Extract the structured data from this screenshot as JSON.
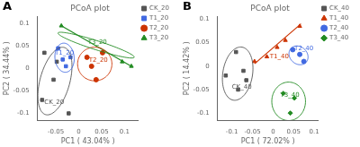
{
  "chart_data": [
    {
      "type": "scatter",
      "panel_label": "A",
      "title": "PCoA plot",
      "x_label": "PC1 ( 43.04% )",
      "y_label": "PC2 ( 34.44% )",
      "xlim": [
        -0.09,
        0.13
      ],
      "ylim": [
        -0.115,
        0.115
      ],
      "xticks": [
        -0.05,
        0,
        0.05,
        0.1
      ],
      "yticks": [
        -0.1,
        -0.05,
        0,
        0.05,
        0.1
      ],
      "grid": false,
      "legend": "right",
      "series": [
        {
          "name": "CK_20",
          "color": "#555555",
          "marker": "square",
          "values": [
            [
              -0.075,
              0.035
            ],
            [
              -0.048,
              0.015
            ],
            [
              -0.055,
              -0.025
            ],
            [
              -0.08,
              -0.07
            ],
            [
              -0.022,
              -0.1
            ]
          ],
          "ellipse": {
            "cx": -0.052,
            "cy": -0.028,
            "w": 0.065,
            "h": 0.155,
            "angle": -15
          },
          "annotation": {
            "text": "CK_20",
            "x": -0.075,
            "y": -0.075
          }
        },
        {
          "name": "T1_20",
          "color": "#4169E1",
          "marker": "square",
          "values": [
            [
              -0.045,
              0.045
            ],
            [
              -0.035,
              0.02
            ],
            [
              -0.028,
              0.005
            ],
            [
              -0.018,
              0.025
            ]
          ],
          "ellipse": {
            "cx": -0.031,
            "cy": 0.024,
            "w": 0.042,
            "h": 0.065,
            "angle": 5
          },
          "annotation": {
            "text": "T1_20",
            "x": -0.052,
            "y": 0.035
          }
        },
        {
          "name": "T2_20",
          "color": "#CC3300",
          "marker": "circle",
          "values": [
            [
              0.018,
              0.025
            ],
            [
              0.052,
              0.035
            ],
            [
              0.038,
              -0.025
            ],
            [
              0.028,
              0.005
            ]
          ],
          "ellipse": {
            "cx": 0.035,
            "cy": 0.01,
            "w": 0.075,
            "h": 0.075,
            "angle": 25
          },
          "annotation": {
            "text": "T2_20",
            "x": 0.022,
            "y": 0.018
          }
        },
        {
          "name": "T3_20",
          "color": "#228B22",
          "marker": "triangle",
          "values": [
            [
              -0.038,
              0.095
            ],
            [
              0.095,
              0.015
            ],
            [
              0.115,
              0.005
            ]
          ],
          "ellipse": {
            "cx": 0.038,
            "cy": 0.052,
            "w": 0.175,
            "h": 0.02,
            "angle": -18
          },
          "line": [
            [
              -0.038,
              0.095
            ],
            [
              0.115,
              0.005
            ]
          ],
          "annotation": {
            "text": "T3_20",
            "x": 0.02,
            "y": 0.058
          }
        }
      ]
    },
    {
      "type": "scatter",
      "panel_label": "B",
      "title": "PCoA plot",
      "x_label": "PC1 ( 72.02% )",
      "y_label": "PC2 ( 14.42% )",
      "xlim": [
        -0.135,
        0.11
      ],
      "ylim": [
        -0.115,
        0.105
      ],
      "xticks": [
        -0.1,
        -0.05,
        0,
        0.05,
        0.1
      ],
      "yticks": [
        -0.1,
        -0.05,
        0,
        0.05,
        0.1
      ],
      "grid": false,
      "legend": "right",
      "series": [
        {
          "name": "CK_40",
          "color": "#555555",
          "marker": "square",
          "values": [
            [
              -0.115,
              -0.02
            ],
            [
              -0.09,
              0.03
            ],
            [
              -0.072,
              -0.01
            ],
            [
              -0.065,
              -0.03
            ],
            [
              -0.085,
              -0.05
            ]
          ],
          "ellipse": {
            "cx": -0.086,
            "cy": -0.016,
            "w": 0.072,
            "h": 0.115,
            "angle": -12
          },
          "annotation": {
            "text": "CK_40",
            "x": -0.1,
            "y": -0.045
          }
        },
        {
          "name": "T1_40",
          "color": "#CC3300",
          "marker": "triangle",
          "values": [
            [
              -0.045,
              0.01
            ],
            [
              -0.015,
              0.02
            ],
            [
              0.01,
              0.04
            ],
            [
              0.03,
              0.055
            ],
            [
              0.065,
              0.085
            ]
          ],
          "line": [
            [
              -0.045,
              0.005
            ],
            [
              0.068,
              0.09
            ]
          ],
          "annotation": {
            "text": "T1_40",
            "x": -0.008,
            "y": 0.02
          }
        },
        {
          "name": "T2_40",
          "color": "#4169E1",
          "marker": "circle",
          "values": [
            [
              0.048,
              0.035
            ],
            [
              0.065,
              0.025
            ],
            [
              0.075,
              0.01
            ]
          ],
          "ellipse": {
            "cx": 0.062,
            "cy": 0.023,
            "w": 0.048,
            "h": 0.038,
            "angle": -25
          },
          "annotation": {
            "text": "T2_40",
            "x": 0.052,
            "y": 0.038
          }
        },
        {
          "name": "T3_40",
          "color": "#228B22",
          "marker": "diamond",
          "values": [
            [
              0.025,
              -0.058
            ],
            [
              0.052,
              -0.068
            ],
            [
              0.042,
              -0.1
            ]
          ],
          "ellipse": {
            "cx": 0.038,
            "cy": -0.075,
            "w": 0.082,
            "h": 0.082,
            "angle": 0
          },
          "annotation": {
            "text": "T3_40",
            "x": 0.018,
            "y": -0.062
          }
        }
      ]
    }
  ]
}
